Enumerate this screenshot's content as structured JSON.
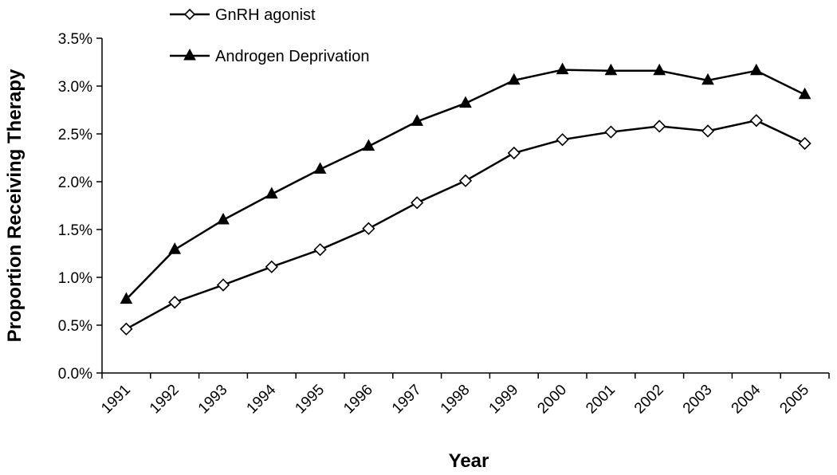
{
  "chart_data": {
    "type": "line",
    "x": [
      "1991",
      "1992",
      "1993",
      "1994",
      "1995",
      "1996",
      "1997",
      "1998",
      "1999",
      "2000",
      "2001",
      "2002",
      "2003",
      "2004",
      "2005"
    ],
    "series": [
      {
        "name": "GnRH agonist",
        "marker": "open-diamond",
        "color": "#000000",
        "values": [
          0.46,
          0.74,
          0.92,
          1.11,
          1.29,
          1.51,
          1.78,
          2.01,
          2.3,
          2.44,
          2.52,
          2.58,
          2.53,
          2.64,
          2.4
        ]
      },
      {
        "name": "Androgen Deprivation",
        "marker": "filled-triangle",
        "color": "#000000",
        "values": [
          0.77,
          1.29,
          1.6,
          1.87,
          2.13,
          2.37,
          2.63,
          2.82,
          3.06,
          3.17,
          3.16,
          3.16,
          3.06,
          3.16,
          2.91
        ]
      }
    ],
    "xlabel": "Year",
    "ylabel": "Proportion Receiving Therapy",
    "ylim": [
      0,
      3.5
    ],
    "yticks": [
      "0.0%",
      "0.5%",
      "1.0%",
      "1.5%",
      "2.0%",
      "2.5%",
      "3.0%",
      "3.5%"
    ],
    "y_unit": "%",
    "grid": false,
    "legend_position": "top-left"
  }
}
